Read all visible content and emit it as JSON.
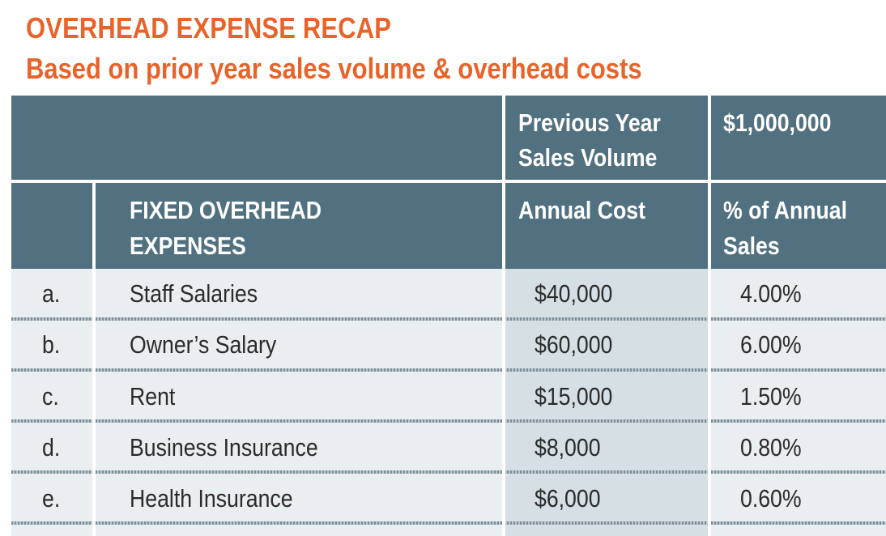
{
  "title": "OVERHEAD EXPENSE RECAP",
  "subtitle": "Based on prior year sales volume & overhead costs",
  "header_top": {
    "col3_line1": "Previous Year",
    "col3_line2": "Sales Volume",
    "col4": "$1,000,000"
  },
  "header_sub": {
    "col2_line1": "FIXED OVERHEAD",
    "col2_line2": "EXPENSES",
    "col3": "Annual Cost",
    "col4_line1": "% of Annual",
    "col4_line2": "Sales"
  },
  "rows": [
    {
      "letter": "a.",
      "expense": "Staff Salaries",
      "cost": "$40,000",
      "pct": "4.00%"
    },
    {
      "letter": "b.",
      "expense": "Owner’s Salary",
      "cost": "$60,000",
      "pct": "6.00%"
    },
    {
      "letter": "c.",
      "expense": "Rent",
      "cost": "$15,000",
      "pct": "1.50%"
    },
    {
      "letter": "d.",
      "expense": "Business Insurance",
      "cost": "$8,000",
      "pct": "0.80%"
    },
    {
      "letter": "e.",
      "expense": "Health Insurance",
      "cost": "$6,000",
      "pct": "0.60%"
    }
  ]
}
